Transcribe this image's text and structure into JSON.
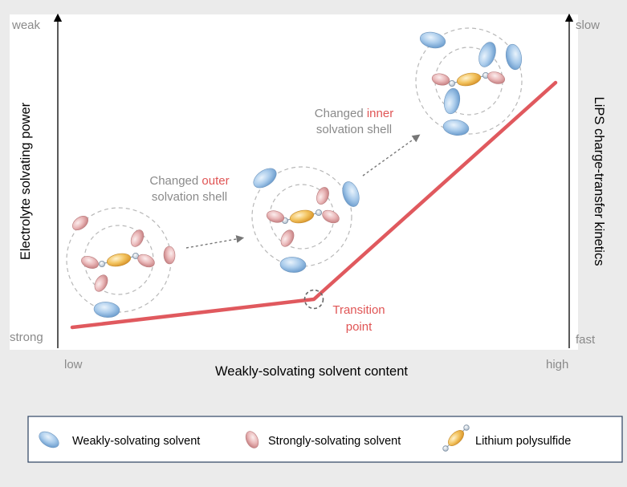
{
  "axes": {
    "left_label": "Electrolyte solvating power",
    "left_top": "weak",
    "left_bottom": "strong",
    "right_label": "LiPS charge-transfer kinetics",
    "right_top": "slow",
    "right_bottom": "fast",
    "x_label": "Weakly-solvating solvent content",
    "x_low": "low",
    "x_high": "high"
  },
  "annotations": {
    "outer_prefix": "Changed ",
    "outer_highlight": "outer",
    "outer_line2": "solvation shell",
    "inner_prefix": "Changed ",
    "inner_highlight": "inner",
    "inner_line2": "solvation shell",
    "transition_line1": "Transition",
    "transition_line2": "point"
  },
  "legend": {
    "weak_solvent": "Weakly-solvating solvent",
    "strong_solvent": "Strongly-solvating solvent",
    "polysulfide": "Lithium polysulfide"
  },
  "colors": {
    "trend_line": "#e0595e",
    "highlight_text": "#e05555",
    "weak_solvent": "#8db7e1",
    "strong_solvent": "#e4a6a8",
    "polysulfide": "#f0b84a",
    "annotation_text": "#8a8a8a"
  }
}
